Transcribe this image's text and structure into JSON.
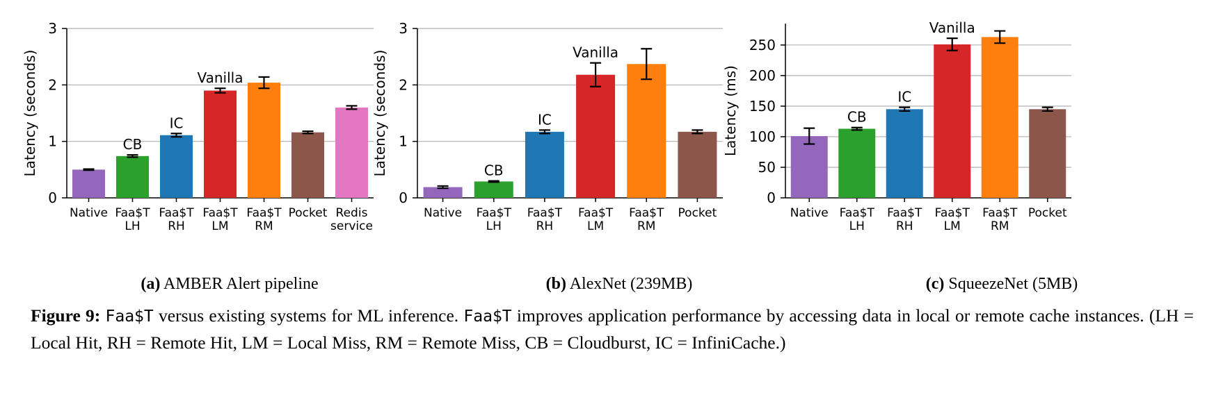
{
  "figure": {
    "label": "Figure 9:",
    "caption_parts": [
      {
        "text": "Faa$T",
        "mono": true
      },
      {
        "text": " versus existing systems for ML inference. ",
        "mono": false
      },
      {
        "text": "Faa$T",
        "mono": true
      },
      {
        "text": " improves application performance by accessing data in local or remote cache instances.  (LH = Local Hit, RH = Remote Hit, LM = Local Miss, RM = Remote Miss, CB = Cloudburst, IC = InfiniCache.)",
        "mono": false
      }
    ]
  },
  "colors": {
    "purple": "#9467bd",
    "green": "#2ca02c",
    "blue": "#1f77b4",
    "red": "#d62728",
    "orange": "#ff7f0e",
    "brown": "#8c564b",
    "pink": "#e377c2",
    "grid": "#b0b0b0"
  },
  "chart_data": [
    {
      "type": "bar",
      "subcaption_label": "(a)",
      "subcaption_text": "AMBER Alert pipeline",
      "ylabel": "Latency (seconds)",
      "xlabel": "",
      "ylim": [
        0,
        3
      ],
      "yticks": [
        0,
        1,
        2,
        3
      ],
      "grid": true,
      "categories": [
        [
          "Native"
        ],
        [
          "Faa$T",
          "LH"
        ],
        [
          "Faa$T",
          "RH"
        ],
        [
          "Faa$T",
          "LM"
        ],
        [
          "Faa$T",
          "RM"
        ],
        [
          "Pocket"
        ],
        [
          "Redis",
          "service"
        ]
      ],
      "values": [
        0.5,
        0.74,
        1.11,
        1.9,
        2.04,
        1.16,
        1.6
      ],
      "errors": [
        0.01,
        0.02,
        0.03,
        0.04,
        0.1,
        0.02,
        0.03
      ],
      "bar_colors": [
        "purple",
        "green",
        "blue",
        "red",
        "orange",
        "brown",
        "pink"
      ],
      "annotations": [
        {
          "text": "CB",
          "bar": 1
        },
        {
          "text": "IC",
          "bar": 2
        },
        {
          "text": "Vanilla",
          "bar": 3
        }
      ]
    },
    {
      "type": "bar",
      "subcaption_label": "(b)",
      "subcaption_text": "AlexNet (239MB)",
      "ylabel": "Latency (seconds)",
      "xlabel": "",
      "ylim": [
        0,
        3
      ],
      "yticks": [
        0,
        1,
        2,
        3
      ],
      "grid": true,
      "categories": [
        [
          "Native"
        ],
        [
          "Faa$T",
          "LH"
        ],
        [
          "Faa$T",
          "RH"
        ],
        [
          "Faa$T",
          "LM"
        ],
        [
          "Faa$T",
          "RM"
        ],
        [
          "Pocket"
        ]
      ],
      "values": [
        0.19,
        0.29,
        1.17,
        2.18,
        2.37,
        1.17
      ],
      "errors": [
        0.02,
        0.01,
        0.03,
        0.21,
        0.27,
        0.03
      ],
      "bar_colors": [
        "purple",
        "green",
        "blue",
        "red",
        "orange",
        "brown"
      ],
      "annotations": [
        {
          "text": "CB",
          "bar": 1
        },
        {
          "text": "IC",
          "bar": 2
        },
        {
          "text": "Vanilla",
          "bar": 3
        }
      ]
    },
    {
      "type": "bar",
      "subcaption_label": "(c)",
      "subcaption_text": "SqueezeNet (5MB)",
      "ylabel": "Latency (ms)",
      "xlabel": "",
      "ylim": [
        0,
        285
      ],
      "yticks": [
        0,
        50,
        100,
        150,
        200,
        250
      ],
      "grid": true,
      "categories": [
        [
          "Native"
        ],
        [
          "Faa$T",
          "LH"
        ],
        [
          "Faa$T",
          "RH"
        ],
        [
          "Faa$T",
          "LM"
        ],
        [
          "Faa$T",
          "RM"
        ],
        [
          "Pocket"
        ]
      ],
      "values": [
        101,
        113,
        145,
        251,
        263,
        145
      ],
      "errors": [
        13,
        2,
        3,
        10,
        10,
        3
      ],
      "bar_colors": [
        "purple",
        "green",
        "blue",
        "red",
        "orange",
        "brown"
      ],
      "annotations": [
        {
          "text": "CB",
          "bar": 1
        },
        {
          "text": "IC",
          "bar": 2
        },
        {
          "text": "Vanilla",
          "bar": 3
        }
      ]
    }
  ]
}
